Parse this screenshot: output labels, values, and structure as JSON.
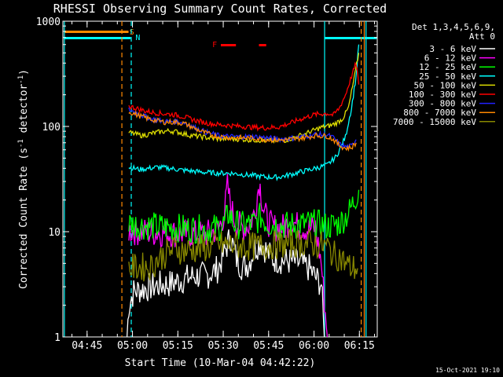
{
  "chart_data": {
    "type": "line",
    "title": "RHESSI Observing Summary Count Rates, Corrected",
    "xlabel": "Start Time (10-Mar-04 04:42:22)",
    "ylabel": "Corrected Count Rate (s",
    "ylabel_sup1": "-1",
    "ylabel_mid": " detector",
    "ylabel_sup2": "-1",
    "ylabel_end": ")",
    "yscale": "log",
    "ylim": [
      1,
      1000
    ],
    "xlim_minutes": [
      -5.4,
      98.5
    ],
    "x_ticks": [
      {
        "t": 2.6,
        "label": "04:45"
      },
      {
        "t": 17.6,
        "label": "05:00"
      },
      {
        "t": 32.6,
        "label": "05:15"
      },
      {
        "t": 47.6,
        "label": "05:30"
      },
      {
        "t": 62.6,
        "label": "05:45"
      },
      {
        "t": 77.6,
        "label": "06:00"
      },
      {
        "t": 92.6,
        "label": "06:15"
      }
    ],
    "y_ticks": [
      {
        "v": 1,
        "label": "1"
      },
      {
        "v": 10,
        "label": "10"
      },
      {
        "v": 100,
        "label": "100"
      },
      {
        "v": 1000,
        "label": "1000"
      }
    ],
    "legend_header": [
      "Det 1,3,4,5,6,9,",
      "Att 0"
    ],
    "series": [
      {
        "name": "3 - 6 keV",
        "color": "#ffffff",
        "points": [
          [
            15.8,
            1
          ],
          [
            16.4,
            2
          ],
          [
            18,
            2.7
          ],
          [
            22,
            2.9
          ],
          [
            26,
            3.1
          ],
          [
            30,
            3.2
          ],
          [
            34,
            3.5
          ],
          [
            38,
            3.8
          ],
          [
            42,
            3.8
          ],
          [
            46,
            4.5
          ],
          [
            48.5,
            7
          ],
          [
            50,
            9
          ],
          [
            52,
            5.5
          ],
          [
            54,
            4.6
          ],
          [
            56,
            5
          ],
          [
            58,
            7
          ],
          [
            60,
            8
          ],
          [
            62,
            6.5
          ],
          [
            64,
            5.5
          ],
          [
            68,
            5.3
          ],
          [
            72,
            5.1
          ],
          [
            76,
            4.5
          ],
          [
            78,
            3.7
          ],
          [
            80,
            3.2
          ],
          [
            81,
            1
          ]
        ]
      },
      {
        "name": "6 - 12 keV",
        "color": "#ff00ff",
        "points": [
          [
            16.4,
            10.3
          ],
          [
            20,
            10
          ],
          [
            26,
            9.8
          ],
          [
            30,
            9.7
          ],
          [
            34,
            9.6
          ],
          [
            38,
            9.5
          ],
          [
            42,
            9.5
          ],
          [
            46,
            10.5
          ],
          [
            48,
            15
          ],
          [
            49,
            27
          ],
          [
            50,
            18
          ],
          [
            51,
            14
          ],
          [
            52,
            12
          ],
          [
            54,
            11
          ],
          [
            56,
            11.5
          ],
          [
            58,
            15
          ],
          [
            59.5,
            30
          ],
          [
            61,
            16
          ],
          [
            62,
            13
          ],
          [
            64,
            11
          ],
          [
            68,
            11
          ],
          [
            70,
            13
          ],
          [
            72,
            11.5
          ],
          [
            76,
            10.5
          ],
          [
            78,
            11
          ],
          [
            80,
            5
          ],
          [
            82,
            1
          ]
        ]
      },
      {
        "name": "12 - 25 keV",
        "color": "#00ff00",
        "points": [
          [
            16.4,
            12
          ],
          [
            20,
            11.5
          ],
          [
            26,
            11.2
          ],
          [
            30,
            11
          ],
          [
            34,
            10.8
          ],
          [
            38,
            10.7
          ],
          [
            42,
            10.5
          ],
          [
            46,
            11
          ],
          [
            48,
            12
          ],
          [
            49.5,
            15
          ],
          [
            51,
            12
          ],
          [
            54,
            11.5
          ],
          [
            58,
            12
          ],
          [
            60,
            14
          ],
          [
            62,
            12
          ],
          [
            66,
            11.5
          ],
          [
            70,
            11.5
          ],
          [
            74,
            11.8
          ],
          [
            78,
            12
          ],
          [
            82,
            11.2
          ],
          [
            86,
            12
          ],
          [
            89,
            15
          ],
          [
            91,
            20
          ],
          [
            92.4,
            25
          ]
        ]
      },
      {
        "name": "25 - 50 keV",
        "color": "#00ffff",
        "points": [
          [
            16.4,
            41
          ],
          [
            20,
            39
          ],
          [
            26,
            41
          ],
          [
            30,
            40
          ],
          [
            34,
            38.5
          ],
          [
            38,
            37.5
          ],
          [
            42,
            36.5
          ],
          [
            46,
            36
          ],
          [
            50,
            36
          ],
          [
            54,
            35
          ],
          [
            58,
            34
          ],
          [
            62,
            33
          ],
          [
            66,
            33
          ],
          [
            70,
            35
          ],
          [
            74,
            37.5
          ],
          [
            78,
            40
          ],
          [
            82,
            43
          ],
          [
            85,
            52
          ],
          [
            88,
            80
          ],
          [
            90,
            150
          ],
          [
            91.5,
            300
          ],
          [
            92.4,
            600
          ]
        ]
      },
      {
        "name": "50 - 100 keV",
        "color": "#dddd00",
        "points": [
          [
            16.4,
            88
          ],
          [
            19,
            84
          ],
          [
            21,
            82
          ],
          [
            24,
            86
          ],
          [
            27,
            89
          ],
          [
            30,
            91
          ],
          [
            33,
            88
          ],
          [
            36,
            83
          ],
          [
            40,
            80
          ],
          [
            44,
            77
          ],
          [
            48,
            76
          ],
          [
            52,
            76
          ],
          [
            56,
            75
          ],
          [
            60,
            74
          ],
          [
            64,
            73
          ],
          [
            68,
            74
          ],
          [
            72,
            80
          ],
          [
            76,
            88
          ],
          [
            80,
            98
          ],
          [
            83,
            102
          ],
          [
            85,
            108
          ],
          [
            87,
            118
          ],
          [
            89,
            150
          ],
          [
            91,
            300
          ],
          [
            92.4,
            500
          ]
        ]
      },
      {
        "name": "100 - 300 keV",
        "color": "#ff0000",
        "points": [
          [
            16.4,
            156
          ],
          [
            19,
            148
          ],
          [
            22,
            140
          ],
          [
            25,
            135
          ],
          [
            28,
            132
          ],
          [
            31,
            130
          ],
          [
            34,
            125
          ],
          [
            38,
            115
          ],
          [
            42,
            108
          ],
          [
            46,
            104
          ],
          [
            50,
            102
          ],
          [
            54,
            100
          ],
          [
            58,
            98
          ],
          [
            62,
            97
          ],
          [
            66,
            99
          ],
          [
            70,
            108
          ],
          [
            74,
            120
          ],
          [
            78,
            130
          ],
          [
            82,
            133
          ],
          [
            84,
            128
          ],
          [
            86,
            150
          ],
          [
            88,
            200
          ],
          [
            90,
            300
          ],
          [
            91.5,
            400
          ],
          [
            92.4,
            250
          ]
        ]
      },
      {
        "name": "300 - 800 keV",
        "color": "#2222ff",
        "points": [
          [
            16.4,
            145
          ],
          [
            20,
            130
          ],
          [
            24,
            118
          ],
          [
            28,
            112
          ],
          [
            32,
            112
          ],
          [
            35,
            108
          ],
          [
            38,
            98
          ],
          [
            42,
            88
          ],
          [
            46,
            82
          ],
          [
            50,
            80
          ],
          [
            54,
            80
          ],
          [
            58,
            80
          ],
          [
            62,
            78
          ],
          [
            66,
            76
          ],
          [
            70,
            77
          ],
          [
            74,
            80
          ],
          [
            78,
            84
          ],
          [
            82,
            83
          ],
          [
            84,
            78
          ],
          [
            86,
            68
          ],
          [
            88,
            64
          ],
          [
            90,
            65
          ],
          [
            91.5,
            75
          ]
        ]
      },
      {
        "name": "800 - 7000 keV",
        "color": "#ff8800",
        "points": [
          [
            16.4,
            138
          ],
          [
            20,
            126
          ],
          [
            24,
            116
          ],
          [
            28,
            110
          ],
          [
            32,
            110
          ],
          [
            35,
            106
          ],
          [
            38,
            96
          ],
          [
            42,
            86
          ],
          [
            46,
            80
          ],
          [
            50,
            78
          ],
          [
            54,
            78
          ],
          [
            58,
            77
          ],
          [
            62,
            75
          ],
          [
            66,
            74
          ],
          [
            70,
            75
          ],
          [
            74,
            78
          ],
          [
            78,
            82
          ],
          [
            82,
            81
          ],
          [
            84,
            75
          ],
          [
            86,
            66
          ],
          [
            88,
            62
          ],
          [
            90,
            63
          ],
          [
            91.5,
            70
          ]
        ]
      },
      {
        "name": "7000 - 15000 keV",
        "color": "#888800",
        "points": [
          [
            16.4,
            4.5
          ],
          [
            20,
            4.6
          ],
          [
            24,
            4.7
          ],
          [
            26,
            5.5
          ],
          [
            28,
            6
          ],
          [
            30,
            6.5
          ],
          [
            32,
            7
          ],
          [
            34,
            6.6
          ],
          [
            38,
            6.8
          ],
          [
            42,
            7
          ],
          [
            46,
            7.5
          ],
          [
            50,
            7.5
          ],
          [
            54,
            7.3
          ],
          [
            58,
            7.2
          ],
          [
            62,
            7.4
          ],
          [
            66,
            7.5
          ],
          [
            70,
            7.6
          ],
          [
            74,
            7.8
          ],
          [
            78,
            7.6
          ],
          [
            82,
            7.2
          ],
          [
            84,
            6
          ],
          [
            86,
            5.8
          ],
          [
            88,
            5
          ],
          [
            90,
            4.5
          ],
          [
            92,
            4.5
          ]
        ]
      }
    ],
    "flag_labels": {
      "saa": "S",
      "night": "N",
      "flare": "F"
    },
    "vlines": [
      {
        "t": 14.1,
        "color": "#ff8800",
        "dash": true
      },
      {
        "t": 17.2,
        "color": "#00ffff",
        "dash": true
      },
      {
        "t": -4.9,
        "color": "#00ffff",
        "dash": false
      },
      {
        "t": 81.1,
        "color": "#00ffff",
        "dash": false
      },
      {
        "t": 93.2,
        "color": "#ff8800",
        "dash": true
      },
      {
        "t": 94.2,
        "color": "#ff8800",
        "dash": false
      },
      {
        "t": 94.8,
        "color": "#00ffff",
        "dash": false
      }
    ],
    "footer_timestamp": "15-Oct-2021 19:10"
  }
}
